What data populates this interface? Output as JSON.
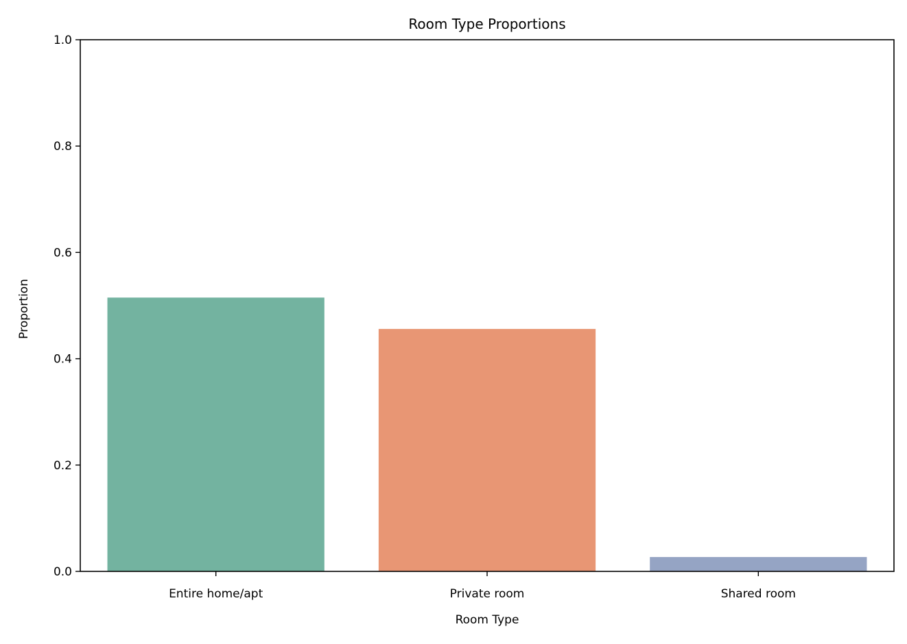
{
  "chart_data": {
    "type": "bar",
    "title": "Room Type Proportions",
    "xlabel": "Room Type",
    "ylabel": "Proportion",
    "categories": [
      "Entire home/apt",
      "Private room",
      "Shared room"
    ],
    "values": [
      0.515,
      0.456,
      0.027
    ],
    "colors": [
      "#73b3a0",
      "#e89674",
      "#95a4c4"
    ],
    "ylim": [
      0,
      1.0
    ],
    "yticks": [
      0.0,
      0.2,
      0.4,
      0.6,
      0.8,
      1.0
    ],
    "ytick_labels": [
      "0.0",
      "0.2",
      "0.4",
      "0.6",
      "0.8",
      "1.0"
    ],
    "grid": false,
    "legend": "none"
  }
}
